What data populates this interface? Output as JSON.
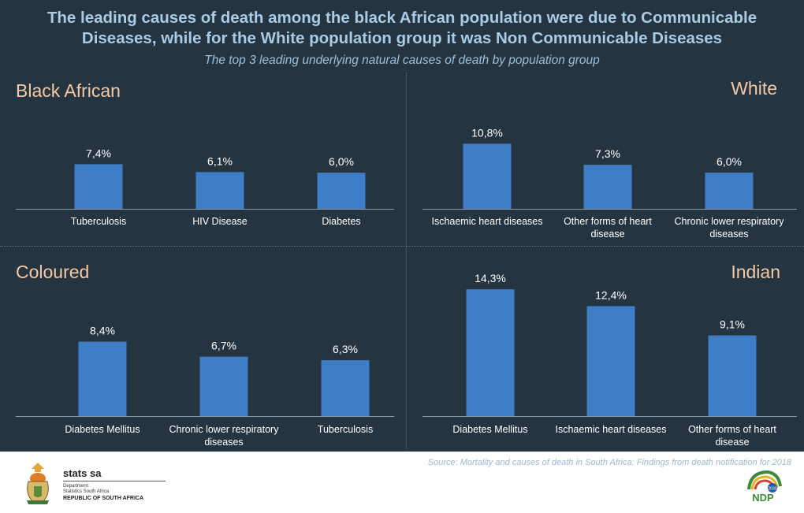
{
  "header": {
    "headline_line1": "The leading causes of death among the black African population were due to Communicable",
    "headline_line2": "Diseases, while for the White population group it was  Non Communicable Diseases",
    "subtitle": "The top 3 leading underlying natural causes of death by population group"
  },
  "chart_data": [
    {
      "type": "bar",
      "title": "Black African",
      "categories": [
        [
          "Tuberculosis"
        ],
        [
          "HIV Disease"
        ],
        [
          "Diabetes"
        ]
      ],
      "values": [
        7.4,
        6.1,
        6.0
      ],
      "labels": [
        "7,4%",
        "6,1%",
        "6,0%"
      ],
      "ylim": [
        0,
        14.3
      ],
      "bar_color": "#3e7ec6"
    },
    {
      "type": "bar",
      "title": "White",
      "categories": [
        [
          "Ischaemic heart diseases"
        ],
        [
          "Other forms of heart",
          "disease"
        ],
        [
          "Chronic lower respiratory",
          "diseases"
        ]
      ],
      "values": [
        10.8,
        7.3,
        6.0
      ],
      "labels": [
        "10,8%",
        "7,3%",
        "6,0%"
      ],
      "ylim": [
        0,
        14.3
      ],
      "bar_color": "#3e7ec6"
    },
    {
      "type": "bar",
      "title": "Coloured",
      "categories": [
        [
          "Diabetes Mellitus"
        ],
        [
          "Chronic lower respiratory",
          "diseases"
        ],
        [
          "Tuberculosis"
        ]
      ],
      "values": [
        8.4,
        6.7,
        6.3
      ],
      "labels": [
        "8,4%",
        "6,7%",
        "6,3%"
      ],
      "ylim": [
        0,
        14.3
      ],
      "bar_color": "#3e7ec6"
    },
    {
      "type": "bar",
      "title": "Indian",
      "categories": [
        [
          "Diabetes Mellitus"
        ],
        [
          "Ischaemic heart diseases"
        ],
        [
          "Other forms of heart",
          "disease"
        ]
      ],
      "values": [
        14.3,
        12.4,
        9.1
      ],
      "labels": [
        "14,3%",
        "12,4%",
        "9,1%"
      ],
      "ylim": [
        0,
        14.3
      ],
      "bar_color": "#3e7ec6"
    }
  ],
  "footer": {
    "source": "Source: Mortality and causes of death in South Africa: Findings from death notification for 2018",
    "brand": "stats sa",
    "department_line1": "Department:",
    "department_line2": "Statistics South Africa",
    "republic": "REPUBLIC OF SOUTH AFRICA",
    "ndp_logo_text": "NDP",
    "ndp_year_text": "2030"
  },
  "icons": {
    "coat_of_arms": "coat-of-arms-icon",
    "ndp": "ndp-logo-icon"
  },
  "colors": {
    "background": "#253441",
    "headline": "#a9cbe3",
    "panel_title": "#f4c9a4",
    "bar": "#3e7ec6"
  }
}
